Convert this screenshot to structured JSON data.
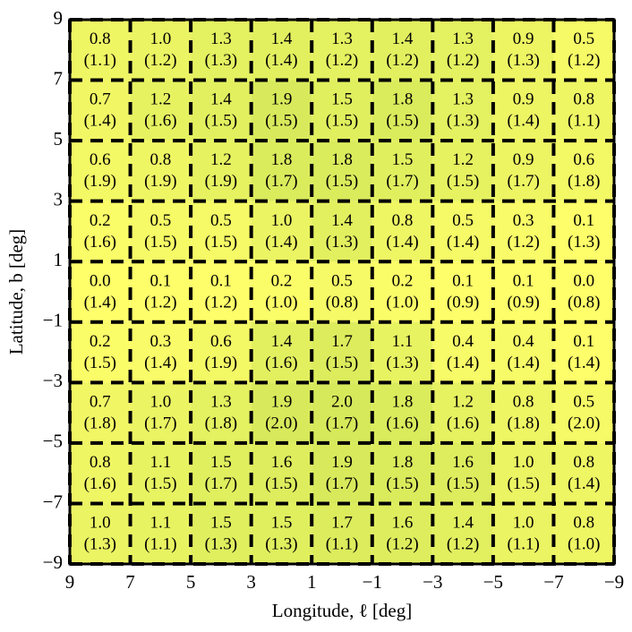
{
  "chart_data": {
    "type": "heatmap",
    "xlabel": "Longitude, ℓ [deg]",
    "ylabel": "Latitude, b [deg]",
    "xlim": [
      9,
      -9
    ],
    "ylim": [
      -9,
      9
    ],
    "xticks": [
      9,
      7,
      5,
      3,
      1,
      {
        "value": -1,
        "label": "−1"
      },
      {
        "value": -3,
        "label": "−3"
      },
      {
        "value": -5,
        "label": "−5"
      },
      {
        "value": -7,
        "label": "−7"
      },
      {
        "value": -9,
        "label": "−9"
      }
    ],
    "yticks": [
      9,
      7,
      5,
      3,
      1,
      {
        "value": -1,
        "label": "−1"
      },
      {
        "value": -3,
        "label": "−3"
      },
      {
        "value": -5,
        "label": "−5"
      },
      {
        "value": -7,
        "label": "−7"
      },
      {
        "value": -9,
        "label": "−9"
      }
    ],
    "colors": [
      "#ffff6a",
      "#d6e95a"
    ],
    "values": [
      [
        0.8,
        1.0,
        1.3,
        1.4,
        1.3,
        1.4,
        1.3,
        0.9,
        0.5
      ],
      [
        0.7,
        1.2,
        1.4,
        1.9,
        1.5,
        1.8,
        1.3,
        0.9,
        0.8
      ],
      [
        0.6,
        0.8,
        1.2,
        1.8,
        1.8,
        1.5,
        1.2,
        0.9,
        0.6
      ],
      [
        0.2,
        0.5,
        0.5,
        1.0,
        1.4,
        0.8,
        0.5,
        0.3,
        0.1
      ],
      [
        0.0,
        0.1,
        0.1,
        0.2,
        0.5,
        0.2,
        0.1,
        0.1,
        0.0
      ],
      [
        0.2,
        0.3,
        0.6,
        1.4,
        1.7,
        1.1,
        0.4,
        0.4,
        0.1
      ],
      [
        0.7,
        1.0,
        1.3,
        1.9,
        2.0,
        1.8,
        1.2,
        0.8,
        0.5
      ],
      [
        0.8,
        1.1,
        1.5,
        1.6,
        1.9,
        1.8,
        1.6,
        1.0,
        0.8
      ],
      [
        1.0,
        1.1,
        1.5,
        1.5,
        1.7,
        1.6,
        1.4,
        1.0,
        0.8
      ]
    ],
    "value_labels": [
      [
        "0.8",
        "1.0",
        "1.3",
        "1.4",
        "1.3",
        "1.4",
        "1.3",
        "0.9",
        "0.5"
      ],
      [
        "0.7",
        "1.2",
        "1.4",
        "1.9",
        "1.5",
        "1.8",
        "1.3",
        "0.9",
        "0.8"
      ],
      [
        "0.6",
        "0.8",
        "1.2",
        "1.8",
        "1.8",
        "1.5",
        "1.2",
        "0.9",
        "0.6"
      ],
      [
        "0.2",
        "0.5",
        "0.5",
        "1.0",
        "1.4",
        "0.8",
        "0.5",
        "0.3",
        "0.1"
      ],
      [
        "0.0",
        "0.1",
        "0.1",
        "0.2",
        "0.5",
        "0.2",
        "0.1",
        "0.1",
        "0.0"
      ],
      [
        "0.2",
        "0.3",
        "0.6",
        "1.4",
        "1.7",
        "1.1",
        "0.4",
        "0.4",
        "0.1"
      ],
      [
        "0.7",
        "1.0",
        "1.3",
        "1.9",
        "2.0",
        "1.8",
        "1.2",
        "0.8",
        "0.5"
      ],
      [
        "0.8",
        "1.1",
        "1.5",
        "1.6",
        "1.9",
        "1.8",
        "1.6",
        "1.0",
        "0.8"
      ],
      [
        "1.0",
        "1.1",
        "1.5",
        "1.5",
        "1.7",
        "1.6",
        "1.4",
        "1.0",
        "0.8"
      ]
    ],
    "errors": [
      [
        1.1,
        1.2,
        1.3,
        1.4,
        1.2,
        1.2,
        1.2,
        1.3,
        1.2
      ],
      [
        1.4,
        1.6,
        1.5,
        1.5,
        1.5,
        1.5,
        1.3,
        1.4,
        1.1
      ],
      [
        1.9,
        1.9,
        1.9,
        1.7,
        1.5,
        1.7,
        1.5,
        1.7,
        1.8
      ],
      [
        1.6,
        1.5,
        1.5,
        1.4,
        1.3,
        1.4,
        1.4,
        1.2,
        1.3
      ],
      [
        1.4,
        1.2,
        1.2,
        1.0,
        0.8,
        1.0,
        0.9,
        0.9,
        0.8
      ],
      [
        1.5,
        1.4,
        1.9,
        1.6,
        1.5,
        1.3,
        1.4,
        1.4,
        1.4
      ],
      [
        1.8,
        1.7,
        1.8,
        2.0,
        1.7,
        1.6,
        1.6,
        1.8,
        2.0
      ],
      [
        1.6,
        1.5,
        1.7,
        1.5,
        1.7,
        1.5,
        1.5,
        1.5,
        1.4
      ],
      [
        1.3,
        1.1,
        1.3,
        1.3,
        1.1,
        1.2,
        1.2,
        1.1,
        1.0
      ]
    ],
    "error_labels": [
      [
        "(1.1)",
        "(1.2)",
        "(1.3)",
        "(1.4)",
        "(1.2)",
        "(1.2)",
        "(1.2)",
        "(1.3)",
        "(1.2)"
      ],
      [
        "(1.4)",
        "(1.6)",
        "(1.5)",
        "(1.5)",
        "(1.5)",
        "(1.5)",
        "(1.3)",
        "(1.4)",
        "(1.1)"
      ],
      [
        "(1.9)",
        "(1.9)",
        "(1.9)",
        "(1.7)",
        "(1.5)",
        "(1.7)",
        "(1.5)",
        "(1.7)",
        "(1.8)"
      ],
      [
        "(1.6)",
        "(1.5)",
        "(1.5)",
        "(1.4)",
        "(1.3)",
        "(1.4)",
        "(1.4)",
        "(1.2)",
        "(1.3)"
      ],
      [
        "(1.4)",
        "(1.2)",
        "(1.2)",
        "(1.0)",
        "(0.8)",
        "(1.0)",
        "(0.9)",
        "(0.9)",
        "(0.8)"
      ],
      [
        "(1.5)",
        "(1.4)",
        "(1.9)",
        "(1.6)",
        "(1.5)",
        "(1.3)",
        "(1.4)",
        "(1.4)",
        "(1.4)"
      ],
      [
        "(1.8)",
        "(1.7)",
        "(1.8)",
        "(2.0)",
        "(1.7)",
        "(1.6)",
        "(1.6)",
        "(1.8)",
        "(2.0)"
      ],
      [
        "(1.6)",
        "(1.5)",
        "(1.7)",
        "(1.5)",
        "(1.7)",
        "(1.5)",
        "(1.5)",
        "(1.5)",
        "(1.4)"
      ],
      [
        "(1.3)",
        "(1.1)",
        "(1.3)",
        "(1.3)",
        "(1.1)",
        "(1.2)",
        "(1.2)",
        "(1.1)",
        "(1.0)"
      ]
    ]
  }
}
